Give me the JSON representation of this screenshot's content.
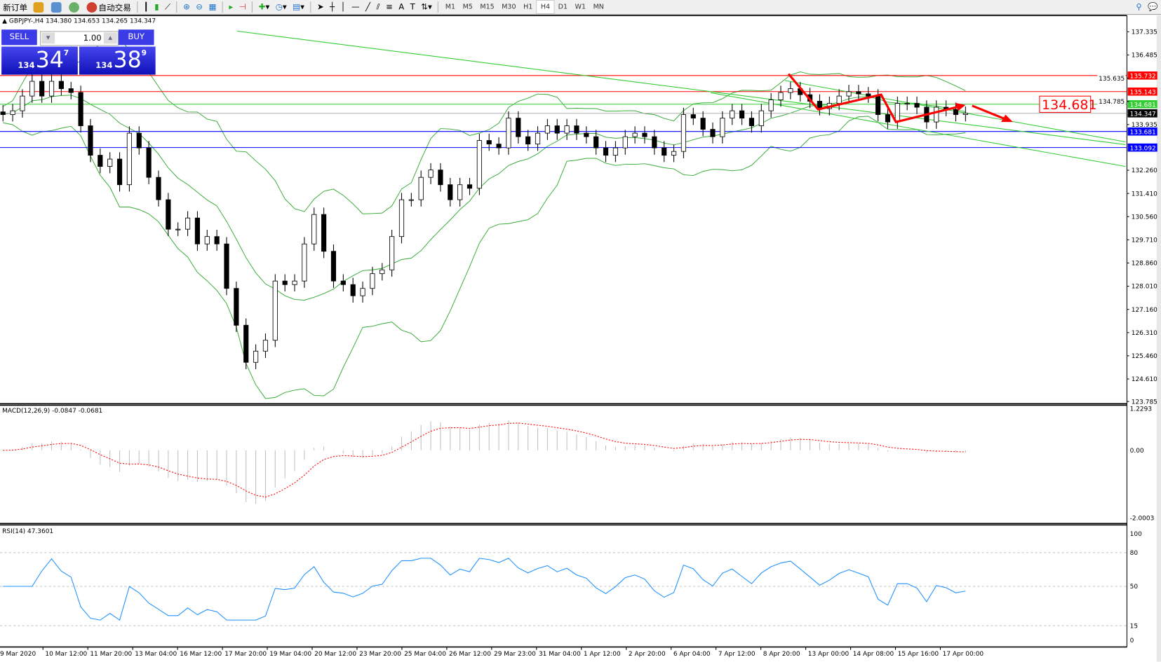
{
  "toolbar": {
    "new_order": "新订单",
    "auto_trading": "自动交易",
    "timeframes": [
      "M1",
      "M5",
      "M15",
      "M30",
      "H1",
      "H4",
      "D1",
      "W1",
      "MN"
    ],
    "active_timeframe": "H4",
    "icons": [
      "new-order-icon",
      "history-icon",
      "market-watch-icon",
      "signals-icon",
      "auto-trading-icon",
      "bar-chart-icon",
      "candlestick-icon",
      "line-chart-icon",
      "zoom-in-icon",
      "zoom-out-icon",
      "tile-windows-icon",
      "auto-scroll-icon",
      "chart-shift-icon",
      "indicators-icon",
      "periods-icon",
      "templates-icon",
      "cursor-icon",
      "crosshair-icon",
      "vertical-line-icon",
      "horizontal-line-icon",
      "trendline-icon",
      "equidistant-channel-icon",
      "fibonacci-icon",
      "text-icon",
      "text-label-icon",
      "arrows-icon",
      "search-icon",
      "chat-icon"
    ]
  },
  "symbol_info": "GBPJPY-,H4  134.380 134.653 134.265 134.347",
  "trade_panel": {
    "sell_label": "SELL",
    "buy_label": "BUY",
    "lot": "1.00",
    "sell_price": {
      "prefix": "134",
      "big": "34",
      "sup": "7"
    },
    "buy_price": {
      "prefix": "134",
      "big": "38",
      "sup": "9"
    }
  },
  "chart_data": {
    "type": "candlestick",
    "symbol": "GBPJPY-",
    "timeframe": "H4",
    "closes": [
      134.3,
      134.44,
      134.98,
      135.52,
      134.98,
      135.52,
      135.25,
      135.11,
      133.89,
      132.81,
      132.4,
      132.67,
      131.73,
      133.62,
      133.08,
      132.0,
      131.18,
      130.1,
      130.1,
      130.51,
      129.56,
      129.83,
      129.56,
      127.93,
      126.58,
      125.22,
      125.63,
      126.03,
      128.2,
      128.07,
      128.2,
      129.56,
      130.64,
      129.29,
      128.2,
      128.07,
      127.66,
      127.93,
      128.47,
      128.61,
      129.83,
      131.18,
      131.18,
      132.0,
      132.27,
      131.73,
      131.18,
      131.73,
      131.6,
      133.35,
      133.22,
      133.08,
      134.17,
      133.49,
      133.22,
      133.62,
      133.89,
      133.62,
      133.89,
      133.62,
      133.49,
      133.08,
      132.81,
      133.08,
      133.49,
      133.62,
      133.49,
      133.08,
      132.81,
      132.95,
      134.3,
      134.17,
      133.76,
      133.49,
      134.17,
      134.44,
      134.17,
      133.89,
      134.44,
      134.84,
      135.11,
      135.25,
      135.03,
      134.79,
      134.52,
      134.71,
      134.98,
      135.14,
      135.06,
      134.98,
      134.3,
      134.03,
      134.71,
      134.71,
      134.57,
      134.03,
      134.57,
      134.49,
      134.3,
      134.35
    ],
    "price_ticks": [
      "137.335",
      "136.485",
      "135.635",
      "134.785",
      "133.935",
      "132.260",
      "131.410",
      "130.560",
      "129.710",
      "128.860",
      "128.010",
      "127.160",
      "126.310",
      "125.460",
      "124.610",
      "123.785"
    ],
    "price_range": [
      123.785,
      137.335
    ],
    "levels": [
      {
        "price": "135.732",
        "color": "#ff0000"
      },
      {
        "price": "135.143",
        "color": "#ff0000"
      },
      {
        "price": "134.681",
        "color": "#33cc33"
      },
      {
        "price": "134.347",
        "color": "#000000"
      },
      {
        "price": "133.681",
        "color": "#0000ff"
      },
      {
        "price": "133.092",
        "color": "#0000ff"
      }
    ],
    "price_callout": "134.681",
    "time_labels": [
      "9 Mar 2020",
      "10 Mar 12:00",
      "11 Mar 20:00",
      "13 Mar 04:00",
      "16 Mar 12:00",
      "17 Mar 20:00",
      "19 Mar 04:00",
      "20 Mar 12:00",
      "23 Mar 20:00",
      "25 Mar 04:00",
      "26 Mar 12:00",
      "29 Mar 23:00",
      "31 Mar 04:00",
      "1 Apr 12:00",
      "2 Apr 20:00",
      "6 Apr 04:00",
      "7 Apr 12:00",
      "8 Apr 20:00",
      "13 Apr 00:00",
      "14 Apr 08:00",
      "15 Apr 16:00",
      "17 Apr 00:00"
    ],
    "macd": {
      "label": "MACD(12,26,9) -0.0847 -0.0681",
      "ticks": [
        "1.2293",
        "0.00",
        "-2.0003"
      ],
      "range": [
        -2.0003,
        1.2293
      ]
    },
    "rsi": {
      "label": "RSI(14) 47.3601",
      "ticks": [
        "100",
        "80",
        "50",
        "15",
        "0"
      ],
      "levels": [
        80,
        50,
        15
      ]
    },
    "colors": {
      "bollinger": "#33aa33",
      "trendline": "#33cc33",
      "arrow": "#ff0000",
      "rsi": "#1e90ff",
      "macd_signal": "#ff0000",
      "macd_hist": "#c0c0c0"
    }
  }
}
